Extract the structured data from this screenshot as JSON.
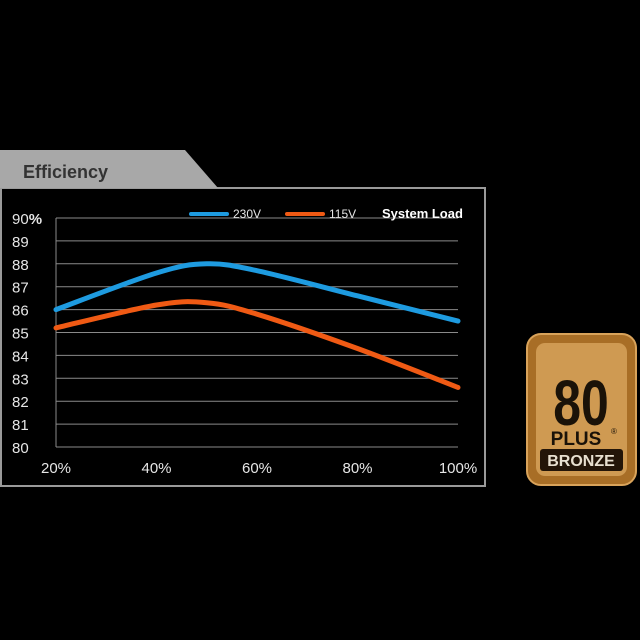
{
  "chart_data": {
    "type": "line",
    "title": "Efficiency",
    "legend_title": "System Load",
    "legend_position": "top-right",
    "xlabel": "",
    "ylabel": "",
    "x": [
      20,
      40,
      50,
      60,
      80,
      100
    ],
    "x_ticks": [
      "20%",
      "40%",
      "60%",
      "80%",
      "100%"
    ],
    "x_tick_values": [
      20,
      40,
      60,
      80,
      100
    ],
    "xlim": [
      20,
      100
    ],
    "y_ticks": [
      "90%",
      "89",
      "88",
      "87",
      "86",
      "85",
      "84",
      "83",
      "82",
      "81",
      "80"
    ],
    "y_tick_values": [
      90,
      89,
      88,
      87,
      86,
      85,
      84,
      83,
      82,
      81,
      80
    ],
    "ylim": [
      80,
      90
    ],
    "grid": true,
    "series": [
      {
        "name": "230V",
        "color": "#1e9be0",
        "values": [
          86.0,
          87.6,
          88.0,
          87.7,
          86.6,
          85.5
        ]
      },
      {
        "name": "115V",
        "color": "#f05a14",
        "values": [
          85.2,
          86.2,
          86.3,
          85.8,
          84.3,
          82.6
        ]
      }
    ]
  },
  "badge": {
    "number": "80",
    "brand": "PLUS",
    "trademark": "®",
    "level": "BRONZE",
    "colors": {
      "outer": "#b87a2e",
      "inner": "#c99448",
      "text": "#1a1208",
      "plate": "#231508"
    }
  }
}
